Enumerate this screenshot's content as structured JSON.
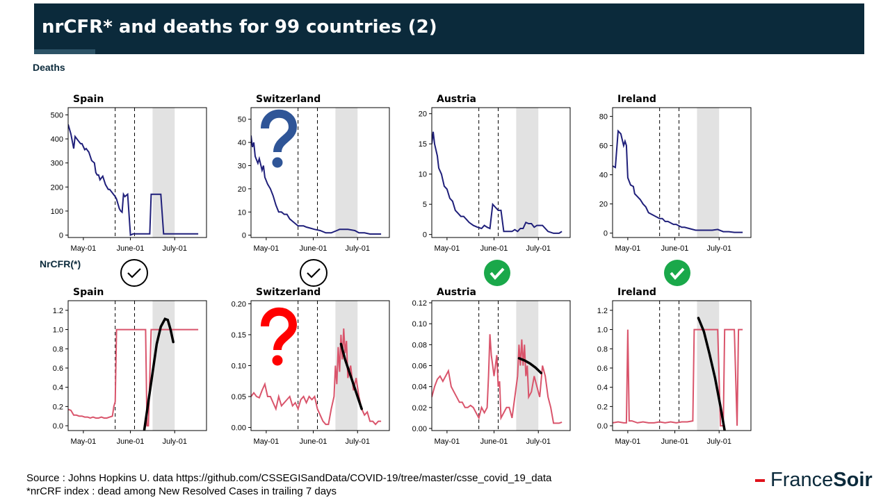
{
  "title": "nrCFR* and deaths for 99 countries (2)",
  "sections": {
    "deaths": "Deaths",
    "nrcfr": "NrCFR(*)"
  },
  "footer": {
    "source": "Source : Johns Hopkins U. data https://github.com/CSSEGISandData/COVID-19/tree/master/csse_covid_19_data",
    "note": "*nrCRF index : dead among New Resolved  Cases in trailing 7 days"
  },
  "logo": {
    "part1": "France",
    "part2": "Soir",
    "accent": "#e0121b"
  },
  "x_axis": {
    "domain": [
      0,
      100
    ],
    "ticks": [
      "May-01",
      "June-01",
      "July-01"
    ],
    "tick_positions": [
      11,
      45,
      77
    ],
    "dashed_lines": [
      34,
      48
    ],
    "shaded_band": [
      61,
      77
    ]
  },
  "colors": {
    "deaths": "#1f1f7a",
    "nrcfr": "#d9546b",
    "trend": "#000000",
    "band": "#e2e2e2",
    "check_green": "#1aa84a"
  },
  "verdicts": [
    {
      "country": "Spain",
      "deaths": "check-outline",
      "nrcfr": "none"
    },
    {
      "country": "Switzerland",
      "deaths": "question-blue",
      "nrcfr": "question-red"
    },
    {
      "country": "Austria",
      "deaths": "none",
      "nrcfr": "none"
    },
    {
      "country": "Ireland",
      "deaths": "none",
      "nrcfr": "none"
    }
  ],
  "between_icons": [
    "check-outline",
    "check-outline",
    "check-green",
    "check-green"
  ],
  "chart_data": [
    {
      "type": "line",
      "title": "Spain",
      "panel": "deaths",
      "ylim": [
        -10,
        530
      ],
      "yticks": [
        0,
        100,
        200,
        300,
        400,
        500
      ],
      "series": [
        {
          "name": "",
          "x": [
            0,
            2,
            4,
            5,
            7,
            9,
            10,
            12,
            13,
            15,
            17,
            19,
            20,
            21,
            22,
            23,
            25,
            27,
            28,
            29,
            30,
            32,
            34,
            35,
            36,
            37,
            38,
            39,
            40,
            41,
            43,
            45,
            47,
            50,
            55,
            59,
            60,
            62,
            64,
            66,
            67,
            69,
            71,
            73,
            75,
            77,
            80,
            83,
            86,
            90,
            94
          ],
          "y": [
            460,
            420,
            360,
            410,
            395,
            380,
            380,
            355,
            360,
            345,
            310,
            300,
            260,
            250,
            250,
            230,
            245,
            210,
            200,
            190,
            190,
            175,
            160,
            150,
            130,
            110,
            100,
            95,
            170,
            160,
            170,
            0,
            5,
            5,
            5,
            5,
            170,
            170,
            170,
            170,
            170,
            5,
            5,
            5,
            5,
            5,
            5,
            5,
            5,
            5,
            5
          ]
        }
      ],
      "trend": null
    },
    {
      "type": "line",
      "title": "Switzerland",
      "panel": "deaths",
      "ylim": [
        -1,
        55
      ],
      "yticks": [
        0,
        10,
        20,
        30,
        40,
        50
      ],
      "series": [
        {
          "name": "",
          "x": [
            0,
            1,
            2,
            3,
            5,
            6,
            8,
            9,
            10,
            12,
            14,
            16,
            18,
            20,
            22,
            24,
            26,
            28,
            30,
            32,
            34,
            36,
            38,
            40,
            43,
            46,
            50,
            54,
            58,
            62,
            64,
            66,
            70,
            75,
            78,
            82,
            86,
            90,
            94
          ],
          "y": [
            43,
            38,
            40,
            34,
            31,
            33,
            28,
            30,
            25,
            22,
            20,
            17,
            13,
            10,
            10,
            9,
            9,
            7,
            6,
            5,
            4,
            4,
            4,
            3.5,
            3,
            2.5,
            2,
            1,
            1,
            2,
            2.5,
            2.5,
            2.5,
            2,
            1,
            1,
            0.5,
            0.5,
            0.5
          ]
        }
      ],
      "trend": null
    },
    {
      "type": "line",
      "title": "Austria",
      "panel": "deaths",
      "ylim": [
        -0.5,
        21
      ],
      "yticks": [
        0,
        5,
        10,
        15,
        20
      ],
      "series": [
        {
          "name": "",
          "x": [
            0,
            1,
            2,
            4,
            5,
            7,
            9,
            11,
            13,
            15,
            17,
            19,
            21,
            23,
            25,
            27,
            30,
            33,
            36,
            38,
            40,
            42,
            44,
            46,
            48,
            50,
            52,
            55,
            58,
            60,
            62,
            64,
            66,
            68,
            70,
            72,
            74,
            76,
            78,
            80,
            84,
            88,
            92,
            94
          ],
          "y": [
            15,
            17,
            15,
            13,
            11,
            10,
            8,
            7.5,
            6,
            5.5,
            4,
            3.5,
            3,
            3,
            2.5,
            2,
            1.5,
            1.2,
            1,
            1.5,
            1.2,
            1,
            5,
            4.5,
            4,
            4,
            0.5,
            0.5,
            0.5,
            0.8,
            0.5,
            1,
            1,
            2,
            1.8,
            1.8,
            1.2,
            1.5,
            1.5,
            1.5,
            0.5,
            0.2,
            0.2,
            0.5
          ]
        }
      ],
      "trend": null
    },
    {
      "type": "line",
      "title": "Ireland",
      "panel": "deaths",
      "ylim": [
        -3,
        86
      ],
      "yticks": [
        0,
        20,
        40,
        60,
        80
      ],
      "series": [
        {
          "name": "",
          "x": [
            0,
            2,
            4,
            6,
            8,
            9,
            10,
            11,
            13,
            15,
            16,
            18,
            20,
            22,
            24,
            26,
            28,
            30,
            32,
            34,
            36,
            38,
            40,
            42,
            44,
            46,
            48,
            50,
            52,
            56,
            60,
            64,
            68,
            72,
            76,
            80,
            84,
            88,
            92,
            94
          ],
          "y": [
            46,
            45,
            70,
            68,
            60,
            63,
            60,
            38,
            33,
            32,
            27,
            25,
            23,
            20,
            18,
            14,
            13,
            12,
            11,
            10,
            10,
            8,
            8,
            7,
            6,
            6,
            5,
            4,
            4,
            3,
            2,
            2,
            2,
            2,
            2.5,
            1,
            1,
            0.5,
            0.5,
            0.5
          ]
        }
      ],
      "trend": null
    },
    {
      "type": "line",
      "title": "Spain",
      "panel": "nrcfr",
      "ylim": [
        -0.05,
        1.3
      ],
      "yticks": [
        "0.0",
        "0.2",
        "0.4",
        "0.6",
        "0.8",
        "1.0",
        "1.2"
      ],
      "series": [
        {
          "name": "",
          "x": [
            0,
            2,
            4,
            6,
            8,
            10,
            12,
            14,
            16,
            18,
            20,
            22,
            24,
            26,
            28,
            30,
            32,
            33,
            34,
            35,
            36,
            38,
            40,
            42,
            44,
            46,
            48,
            50,
            52,
            54,
            56,
            57,
            58,
            60,
            62,
            64,
            66,
            68,
            70,
            72,
            75,
            80,
            85,
            90,
            94
          ],
          "y": [
            0.17,
            0.16,
            0.11,
            0.11,
            0.1,
            0.1,
            0.09,
            0.09,
            0.08,
            0.09,
            0.08,
            0.08,
            0.09,
            0.08,
            0.08,
            0.09,
            0.1,
            0.2,
            0.25,
            1.0,
            1.0,
            1.0,
            1.0,
            1.0,
            1.0,
            1.0,
            1.0,
            1.0,
            1.0,
            1.0,
            1.0,
            0.0,
            0.0,
            1.0,
            1.0,
            1.0,
            1.0,
            1.0,
            1.0,
            1.0,
            1.0,
            1.0,
            1.0,
            1.0,
            1.0
          ]
        }
      ],
      "trend": {
        "x": [
          55,
          58,
          61,
          64,
          67,
          70,
          72,
          74,
          76
        ],
        "y": [
          -0.05,
          0.25,
          0.55,
          0.85,
          1.03,
          1.11,
          1.1,
          1.0,
          0.87
        ]
      }
    },
    {
      "type": "line",
      "title": "Switzerland",
      "panel": "nrcfr",
      "ylim": [
        -0.005,
        0.205
      ],
      "yticks": [
        "0.00",
        "0.05",
        "0.10",
        "0.15",
        "0.20"
      ],
      "series": [
        {
          "name": "",
          "x": [
            0,
            2,
            4,
            6,
            8,
            10,
            12,
            14,
            16,
            18,
            20,
            22,
            24,
            26,
            28,
            30,
            32,
            34,
            36,
            38,
            40,
            42,
            44,
            46,
            48,
            50,
            52,
            54,
            56,
            58,
            60,
            61,
            62,
            63,
            64,
            65,
            66,
            67,
            68,
            69,
            70,
            72,
            74,
            76,
            78,
            80,
            82,
            84,
            86,
            88,
            90,
            92,
            94
          ],
          "y": [
            0.05,
            0.056,
            0.05,
            0.048,
            0.06,
            0.07,
            0.05,
            0.05,
            0.04,
            0.03,
            0.05,
            0.035,
            0.04,
            0.045,
            0.05,
            0.035,
            0.04,
            0.03,
            0.045,
            0.05,
            0.04,
            0.05,
            0.045,
            0.05,
            0.03,
            0.02,
            0.01,
            0.005,
            0.005,
            0.03,
            0.05,
            0.1,
            0.07,
            0.13,
            0.09,
            0.15,
            0.11,
            0.16,
            0.12,
            0.14,
            0.08,
            0.1,
            0.06,
            0.08,
            0.05,
            0.03,
            0.02,
            0.025,
            0.01,
            0.01,
            0.005,
            0.01,
            0.01
          ]
        }
      ],
      "trend": {
        "x": [
          65,
          68,
          71,
          74,
          77,
          80
        ],
        "y": [
          0.135,
          0.11,
          0.09,
          0.07,
          0.05,
          0.03
        ]
      }
    },
    {
      "type": "line",
      "title": "Austria",
      "panel": "nrcfr",
      "ylim": [
        -0.002,
        0.122
      ],
      "yticks": [
        "0.00",
        "0.02",
        "0.04",
        "0.06",
        "0.08",
        "0.10",
        "0.12"
      ],
      "series": [
        {
          "name": "",
          "x": [
            0,
            2,
            4,
            6,
            8,
            10,
            12,
            14,
            16,
            18,
            20,
            22,
            24,
            26,
            28,
            30,
            32,
            34,
            36,
            38,
            40,
            41,
            42,
            43,
            44,
            45,
            46,
            47,
            48,
            49,
            50,
            52,
            54,
            56,
            58,
            60,
            62,
            63,
            64,
            65,
            66,
            67,
            68,
            69,
            70,
            72,
            74,
            76,
            78,
            80,
            82,
            84,
            86,
            88,
            90,
            92,
            94
          ],
          "y": [
            0.03,
            0.04,
            0.047,
            0.05,
            0.045,
            0.05,
            0.055,
            0.04,
            0.035,
            0.03,
            0.025,
            0.025,
            0.02,
            0.02,
            0.022,
            0.02,
            0.015,
            0.01,
            0.02,
            0.015,
            0.02,
            0.05,
            0.09,
            0.07,
            0.06,
            0.05,
            0.06,
            0.07,
            0.04,
            0.045,
            0.01,
            0.015,
            0.02,
            0.02,
            0.01,
            0.03,
            0.05,
            0.08,
            0.06,
            0.085,
            0.06,
            0.08,
            0.05,
            0.06,
            0.03,
            0.035,
            0.05,
            0.04,
            0.03,
            0.06,
            0.05,
            0.03,
            0.02,
            0.005,
            0.005,
            0.005,
            0.006
          ]
        }
      ],
      "trend": {
        "x": [
          63,
          67,
          71,
          75,
          79
        ],
        "y": [
          0.067,
          0.065,
          0.062,
          0.058,
          0.053
        ]
      }
    },
    {
      "type": "line",
      "title": "Ireland",
      "panel": "nrcfr",
      "ylim": [
        -0.05,
        1.3
      ],
      "yticks": [
        "0.0",
        "0.2",
        "0.4",
        "0.6",
        "0.8",
        "1.0",
        "1.2"
      ],
      "series": [
        {
          "name": "",
          "x": [
            0,
            4,
            8,
            10,
            11,
            12,
            14,
            18,
            22,
            26,
            30,
            34,
            38,
            42,
            46,
            50,
            54,
            58,
            59,
            60,
            62,
            64,
            66,
            68,
            70,
            72,
            74,
            76,
            78,
            80,
            81,
            82,
            84,
            86,
            88,
            90,
            91,
            92,
            94
          ],
          "y": [
            0.03,
            0.04,
            0.03,
            0.03,
            1.0,
            0.05,
            0.05,
            0.03,
            0.04,
            0.03,
            0.03,
            0.04,
            0.03,
            0.04,
            0.03,
            0.04,
            0.04,
            0.05,
            1.0,
            1.0,
            1.0,
            1.0,
            1.0,
            1.0,
            1.0,
            1.0,
            1.0,
            1.0,
            0.0,
            0.0,
            1.0,
            1.0,
            1.0,
            1.0,
            1.0,
            0.0,
            1.0,
            1.0,
            1.0
          ]
        }
      ],
      "trend": {
        "x": [
          62,
          66,
          70,
          74,
          78,
          81
        ],
        "y": [
          1.12,
          0.98,
          0.75,
          0.5,
          0.2,
          -0.05
        ]
      }
    }
  ]
}
